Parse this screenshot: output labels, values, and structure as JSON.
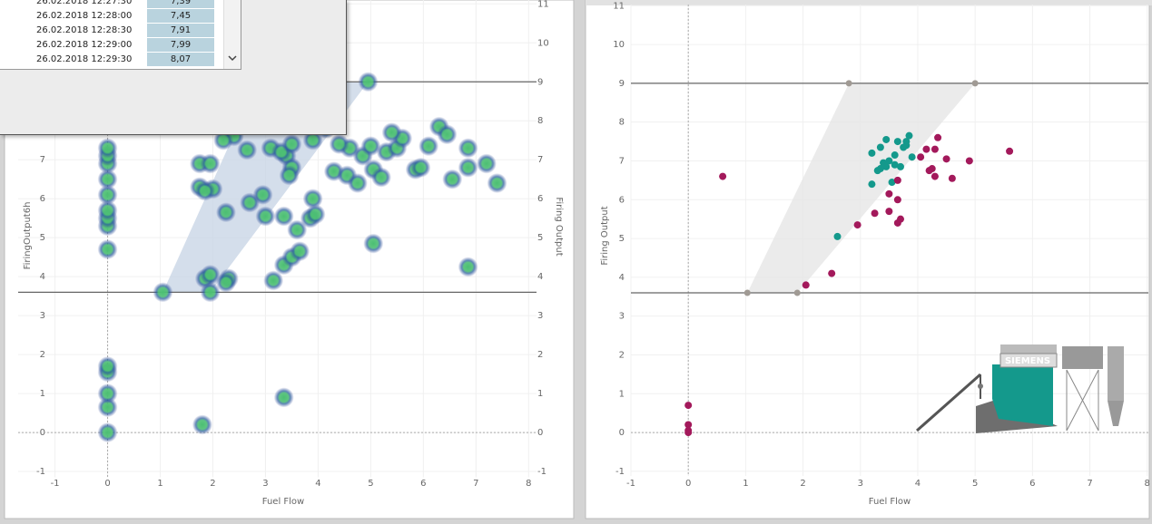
{
  "chart_data": [
    {
      "type": "density",
      "x_label": "Fuel Flow",
      "y_label": "FiringOutput6h",
      "y2_label": "Firing Output",
      "xlim": [
        -1.7,
        8.15
      ],
      "ylim": [
        -1.15,
        11.1
      ],
      "y2lim": [
        -1.15,
        11.1
      ],
      "xticks": [
        -1,
        0,
        1,
        2,
        3,
        4,
        5,
        6,
        7,
        8
      ],
      "yticks": [
        -1,
        0,
        1,
        2,
        3,
        4,
        5,
        6,
        7,
        8,
        9,
        10,
        11
      ],
      "y2ticks": [
        -1,
        0,
        1,
        2,
        3,
        4,
        5,
        6,
        7,
        8,
        9,
        10,
        11
      ],
      "grid": true,
      "reference_lines": [
        3.6,
        9
      ],
      "envelope": {
        "color": "#c9d6e6",
        "x": [
          1.05,
          1.95,
          4.95,
          2.85
        ],
        "y": [
          3.6,
          3.6,
          9,
          9
        ]
      },
      "series": [
        {
          "color": "#4cbf73",
          "x": [
            0,
            0,
            0,
            0,
            0,
            0,
            0,
            0,
            0,
            0,
            0,
            0,
            0,
            0,
            1.05,
            1.85,
            1.95,
            1.95,
            2.3,
            2.25,
            1.8,
            3.35,
            3.15,
            3.35,
            3.5,
            3.65,
            3.6,
            3.0,
            3.35,
            2.0,
            1.75,
            1.85,
            1.75,
            1.95,
            2.95,
            3.1,
            3.4,
            3.5,
            3.3,
            3.45,
            3.85,
            3.95,
            3.9,
            4.3,
            4.55,
            4.75,
            4.85,
            5.05,
            5.2,
            5.3,
            5.5,
            5.6,
            5.85,
            5.95,
            6.1,
            6.3,
            6.45,
            6.55,
            6.85,
            6.85,
            6.85,
            7.2,
            7.4,
            5.05,
            2.25,
            2.7,
            3.9,
            3.5,
            2.4,
            2.2,
            4.6,
            4.95,
            3.8,
            4.15,
            4.4,
            5.4,
            5.0,
            2.65
          ],
          "y": [
            0,
            0.65,
            1.0,
            1.55,
            1.7,
            4.7,
            5.3,
            5.5,
            5.7,
            6.1,
            6.5,
            6.9,
            7.1,
            7.3,
            3.6,
            3.95,
            4.05,
            3.6,
            3.95,
            3.85,
            0.2,
            0.9,
            3.9,
            4.3,
            4.5,
            4.65,
            5.2,
            5.55,
            5.55,
            6.25,
            6.3,
            6.2,
            6.9,
            6.9,
            6.1,
            7.3,
            7.1,
            6.8,
            7.2,
            6.6,
            5.5,
            5.6,
            6.0,
            6.7,
            6.6,
            6.4,
            7.1,
            6.75,
            6.55,
            7.2,
            7.3,
            7.55,
            6.75,
            6.8,
            7.35,
            7.85,
            7.65,
            6.5,
            7.3,
            6.8,
            4.25,
            6.9,
            6.4,
            4.85,
            5.65,
            5.9,
            7.5,
            7.4,
            7.6,
            7.5,
            7.3,
            9.0,
            7.9,
            7.8,
            7.4,
            7.7,
            7.35,
            7.25
          ]
        }
      ]
    },
    {
      "type": "scatter",
      "x_label": "Fuel Flow",
      "y_label": "Firing Output",
      "xlim": [
        -1.0,
        8.02
      ],
      "ylim": [
        -1.12,
        11.03
      ],
      "xticks": [
        -1,
        0,
        1,
        2,
        3,
        4,
        5,
        6,
        7,
        8
      ],
      "yticks": [
        -1,
        0,
        1,
        2,
        3,
        4,
        5,
        6,
        7,
        8,
        9,
        10,
        11
      ],
      "grid": true,
      "reference_lines": [
        3.6,
        9
      ],
      "envelope": {
        "color": "#e6e6e6",
        "point_color": "#a09a94",
        "x": [
          1.03,
          1.9,
          5.0,
          2.8
        ],
        "y": [
          3.6,
          3.6,
          9,
          9
        ]
      },
      "annotations": [
        "SIEMENS"
      ],
      "series": [
        {
          "color": "#14998c",
          "x": [
            3.2,
            3.35,
            3.45,
            3.65,
            3.8,
            3.85,
            3.75,
            3.9,
            3.5,
            3.6,
            3.4,
            3.3,
            3.45,
            3.7,
            3.55,
            3.2,
            3.35,
            3.6,
            3.8,
            2.6
          ],
          "y": [
            7.2,
            7.35,
            7.55,
            7.5,
            7.5,
            7.65,
            7.35,
            7.1,
            7.0,
            6.9,
            6.95,
            6.75,
            6.85,
            6.85,
            6.45,
            6.4,
            6.8,
            7.15,
            7.4,
            5.05
          ]
        },
        {
          "color": "#a3195b",
          "x": [
            0,
            0,
            0,
            0,
            0.6,
            2.05,
            2.5,
            2.95,
            3.25,
            3.5,
            3.5,
            3.65,
            3.7,
            3.65,
            3.65,
            4.05,
            4.15,
            4.3,
            4.35,
            4.2,
            4.25,
            4.3,
            4.5,
            4.6,
            4.9,
            5.6
          ],
          "y": [
            0.7,
            0.2,
            0.05,
            0,
            6.6,
            3.8,
            4.1,
            5.35,
            5.65,
            6.15,
            5.7,
            5.4,
            5.5,
            6.0,
            6.5,
            7.1,
            7.3,
            7.3,
            7.6,
            6.75,
            6.8,
            6.6,
            7.05,
            6.55,
            7.0,
            7.25
          ]
        }
      ]
    }
  ],
  "popup": {
    "rows": [
      [
        "26.02.2018 12:27:30",
        "7,39"
      ],
      [
        "26.02.2018 12:28:00",
        "7,45"
      ],
      [
        "26.02.2018 12:28:30",
        "7,91"
      ],
      [
        "26.02.2018 12:29:00",
        "7,99"
      ],
      [
        "26.02.2018 12:29:30",
        "8,07"
      ]
    ]
  }
}
